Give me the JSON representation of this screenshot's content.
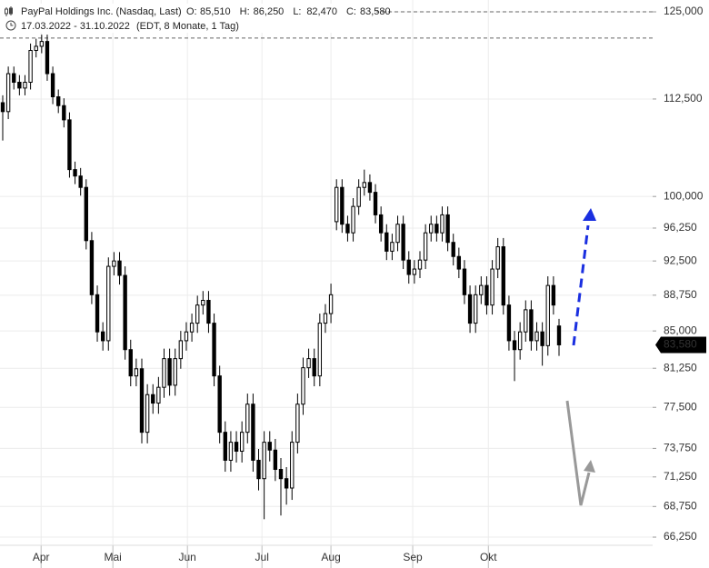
{
  "chart_data": {
    "type": "candlestick",
    "title": "PayPal Holdings Inc. (Nasdaq, Last)",
    "stats": [
      {
        "key": "O:",
        "value": 85.51,
        "label": "85,510"
      },
      {
        "key": "H:",
        "value": 86.25,
        "label": "86,250"
      },
      {
        "key": "L:",
        "value": 82.47,
        "label": "82,470"
      },
      {
        "key": "C:",
        "value": 83.58,
        "label": "83,580"
      }
    ],
    "date_range": "17.03.2022 - 31.10.2022",
    "subtitle": "(EDT, 8 Monate, 1 Tag)",
    "log_scale": true,
    "grid": true,
    "up_color": "#ffffff",
    "down_color": "#000000",
    "open": [
      112.0,
      110.8,
      116.0,
      114.8,
      114.0,
      114.8,
      119.3,
      119.9,
      120.6,
      116.0,
      112.8,
      111.6,
      109.7,
      103.3,
      102.5,
      101.1,
      94.8,
      88.8,
      84.9,
      84.0,
      91.9,
      92.5,
      90.9,
      83.1,
      80.5,
      81.2,
      75.2,
      78.7,
      77.9,
      79.4,
      82.2,
      79.6,
      82.2,
      84.0,
      84.9,
      85.8,
      87.7,
      88.2,
      85.8,
      80.5,
      75.2,
      72.7,
      74.3,
      73.5,
      75.2,
      77.8,
      72.7,
      71.1,
      74.3,
      73.6,
      71.9,
      71.1,
      70.3,
      74.3,
      77.8,
      81.3,
      82.2,
      80.5,
      85.8,
      86.8,
      97.0,
      101.1,
      96.7,
      95.7,
      98.8,
      101.1,
      101.7,
      100.5,
      97.8,
      95.7,
      93.6,
      94.6,
      96.7,
      92.6,
      91.0,
      91.6,
      92.6,
      95.7,
      96.7,
      95.7,
      97.8,
      94.6,
      93.0,
      91.6,
      88.8,
      85.8,
      88.8,
      89.8,
      87.7,
      91.6,
      94.1,
      87.7,
      84.0,
      83.1,
      84.9,
      87.2,
      84.0,
      84.9,
      83.5,
      89.8,
      85.51
    ],
    "high": [
      113.0,
      117.0,
      117.0,
      115.8,
      115.8,
      120.3,
      121.0,
      121.6,
      121.6,
      117.0,
      113.8,
      112.6,
      110.7,
      104.3,
      103.5,
      102.1,
      95.8,
      89.8,
      85.9,
      92.9,
      93.5,
      93.5,
      91.9,
      84.1,
      82.2,
      82.2,
      79.7,
      79.7,
      80.4,
      83.2,
      83.2,
      83.2,
      85.0,
      85.9,
      86.8,
      88.7,
      89.2,
      89.2,
      86.8,
      81.5,
      76.2,
      75.3,
      75.3,
      76.2,
      78.8,
      78.8,
      73.7,
      75.3,
      75.3,
      74.6,
      72.9,
      72.1,
      75.3,
      78.8,
      82.3,
      83.2,
      83.2,
      86.8,
      87.8,
      90.0,
      102.1,
      102.1,
      97.7,
      99.8,
      102.1,
      103.3,
      102.7,
      101.5,
      98.8,
      96.7,
      95.6,
      97.7,
      97.7,
      93.6,
      92.6,
      93.6,
      96.7,
      97.7,
      97.7,
      98.8,
      98.8,
      95.6,
      94.0,
      92.6,
      89.8,
      89.8,
      90.8,
      90.8,
      92.6,
      95.1,
      95.1,
      88.7,
      85.0,
      85.9,
      88.2,
      88.2,
      85.9,
      85.9,
      90.8,
      90.8,
      86.25
    ],
    "low": [
      107.0,
      109.8,
      113.8,
      113.0,
      113.0,
      113.8,
      118.3,
      118.9,
      115.0,
      111.8,
      110.6,
      108.7,
      102.3,
      101.5,
      100.1,
      93.8,
      87.8,
      83.9,
      83.0,
      83.0,
      90.9,
      89.9,
      82.1,
      79.5,
      79.5,
      74.2,
      74.2,
      76.9,
      76.9,
      78.4,
      78.6,
      78.6,
      81.2,
      83.0,
      83.9,
      84.8,
      86.7,
      84.8,
      79.5,
      74.2,
      71.7,
      71.7,
      72.5,
      72.5,
      74.2,
      71.7,
      70.1,
      67.7,
      72.6,
      70.9,
      68.0,
      68.9,
      69.3,
      73.3,
      76.8,
      80.3,
      79.5,
      79.5,
      84.8,
      85.8,
      96.0,
      95.7,
      94.7,
      94.7,
      97.8,
      100.1,
      99.5,
      96.8,
      94.7,
      92.6,
      92.6,
      93.6,
      91.6,
      90.0,
      90.0,
      90.6,
      91.6,
      94.7,
      94.7,
      94.7,
      93.6,
      92.0,
      90.6,
      87.8,
      84.8,
      84.8,
      87.8,
      86.7,
      86.7,
      90.6,
      86.7,
      83.0,
      80.0,
      82.1,
      83.9,
      83.0,
      83.0,
      81.5,
      82.5,
      86.7,
      82.47
    ],
    "close": [
      110.8,
      116.0,
      114.8,
      114.0,
      114.8,
      119.3,
      119.9,
      120.6,
      116.0,
      112.8,
      111.6,
      109.7,
      103.3,
      102.5,
      101.1,
      94.8,
      88.8,
      84.9,
      84.0,
      91.9,
      92.5,
      90.9,
      83.1,
      80.5,
      81.2,
      75.2,
      78.7,
      77.9,
      79.4,
      82.2,
      79.6,
      82.2,
      84.0,
      84.9,
      85.8,
      87.7,
      88.2,
      85.8,
      80.5,
      75.2,
      72.7,
      74.3,
      73.5,
      75.2,
      77.8,
      72.7,
      71.1,
      74.3,
      73.6,
      71.9,
      71.1,
      70.3,
      74.3,
      77.8,
      81.3,
      82.2,
      80.5,
      85.8,
      86.8,
      88.8,
      101.1,
      96.7,
      95.7,
      98.8,
      101.1,
      101.7,
      100.5,
      97.8,
      95.7,
      93.6,
      94.6,
      96.7,
      92.6,
      91.0,
      91.6,
      92.6,
      95.7,
      96.7,
      95.7,
      97.8,
      94.6,
      93.0,
      91.6,
      88.8,
      85.8,
      88.8,
      89.8,
      87.7,
      91.6,
      94.1,
      87.7,
      84.0,
      83.1,
      84.9,
      87.2,
      84.0,
      84.9,
      83.5,
      89.8,
      87.7,
      83.58
    ],
    "xlim": [
      0,
      100
    ],
    "xticks": [
      {
        "value": 6.9,
        "label": "Apr"
      },
      {
        "value": 19.8,
        "label": "Mai"
      },
      {
        "value": 33.2,
        "label": "Jun"
      },
      {
        "value": 46.6,
        "label": "Jul"
      },
      {
        "value": 59,
        "label": "Aug"
      },
      {
        "value": 73.7,
        "label": "Sep"
      },
      {
        "value": 87.3,
        "label": "Okt"
      }
    ],
    "ylim": [
      65.6,
      126.8
    ],
    "yticks": [
      {
        "value": 125,
        "label": "125,000"
      },
      {
        "value": 112.5,
        "label": "112,500"
      },
      {
        "value": 100,
        "label": "100,000"
      },
      {
        "value": 96.25,
        "label": "96,250"
      },
      {
        "value": 92.5,
        "label": "92,500"
      },
      {
        "value": 88.75,
        "label": "88,750"
      },
      {
        "value": 85,
        "label": "85,000"
      },
      {
        "value": 81.25,
        "label": "81,250"
      },
      {
        "value": 77.5,
        "label": "77,500"
      },
      {
        "value": 73.75,
        "label": "73,750"
      },
      {
        "value": 71.25,
        "label": "71,250"
      },
      {
        "value": 68.75,
        "label": "68,750"
      },
      {
        "value": 66.25,
        "label": "66,250"
      }
    ],
    "reference_lines": [
      125,
      121.1
    ],
    "last_price": {
      "value": 83.58,
      "label": "83,580"
    }
  }
}
